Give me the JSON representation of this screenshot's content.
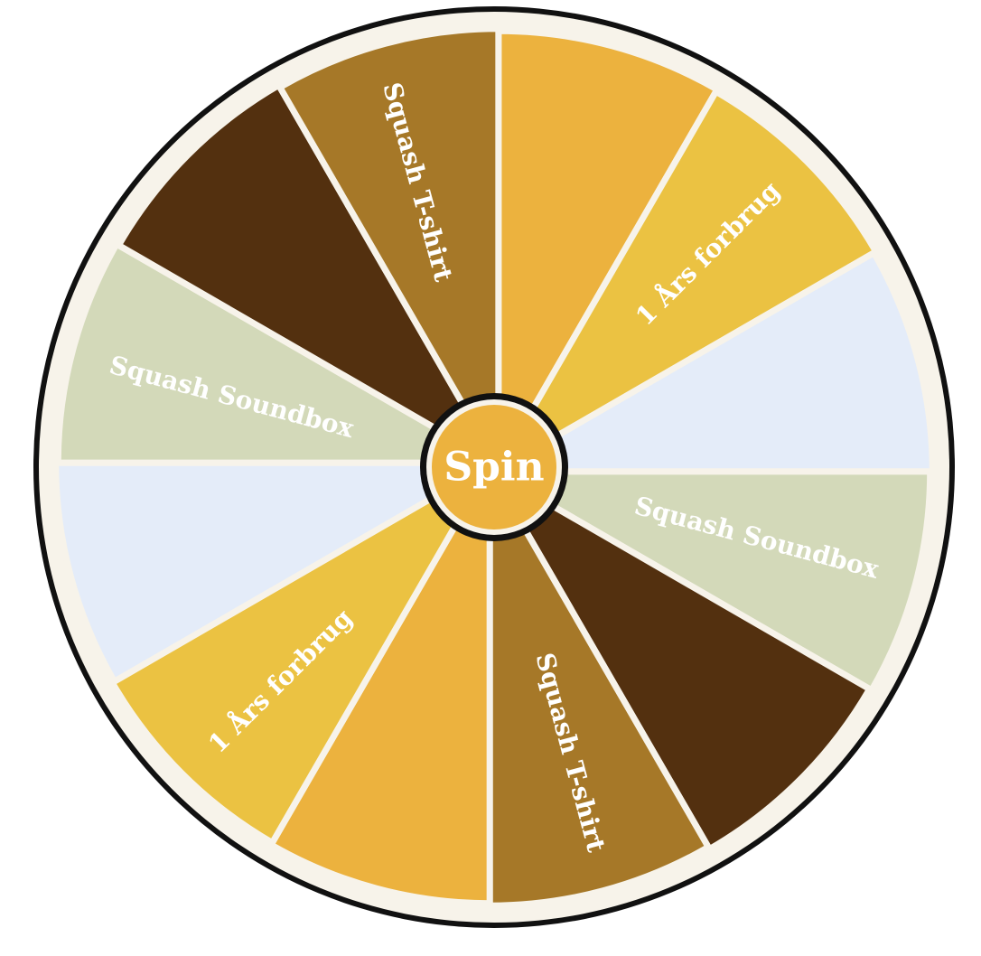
{
  "wheel": {
    "spin_label": "Spin",
    "colors": {
      "outer_ring": "#111111",
      "rim": "#f7f3ea",
      "divider": "#f7f3ea",
      "hub_border": "#111111",
      "hub_fill": "#ecb23e"
    },
    "slices": [
      {
        "label": "",
        "color": "#ecb23e"
      },
      {
        "label": "1 Års forbrug",
        "color": "#ebc242"
      },
      {
        "label": "",
        "color": "#e4ecf9"
      },
      {
        "label": "Squash Soundbox",
        "color": "#d3d9b9"
      },
      {
        "label": "",
        "color": "#53300f"
      },
      {
        "label": "Squash T-shirt",
        "color": "#a67828"
      },
      {
        "label": "",
        "color": "#ecb23e"
      },
      {
        "label": "1 Års forbrug",
        "color": "#ebc242"
      },
      {
        "label": "",
        "color": "#e4ecf9"
      },
      {
        "label": "Squash Soundbox",
        "color": "#d3d9b9"
      },
      {
        "label": "",
        "color": "#53300f"
      },
      {
        "label": "Squash T-shirt",
        "color": "#a67828"
      }
    ]
  }
}
